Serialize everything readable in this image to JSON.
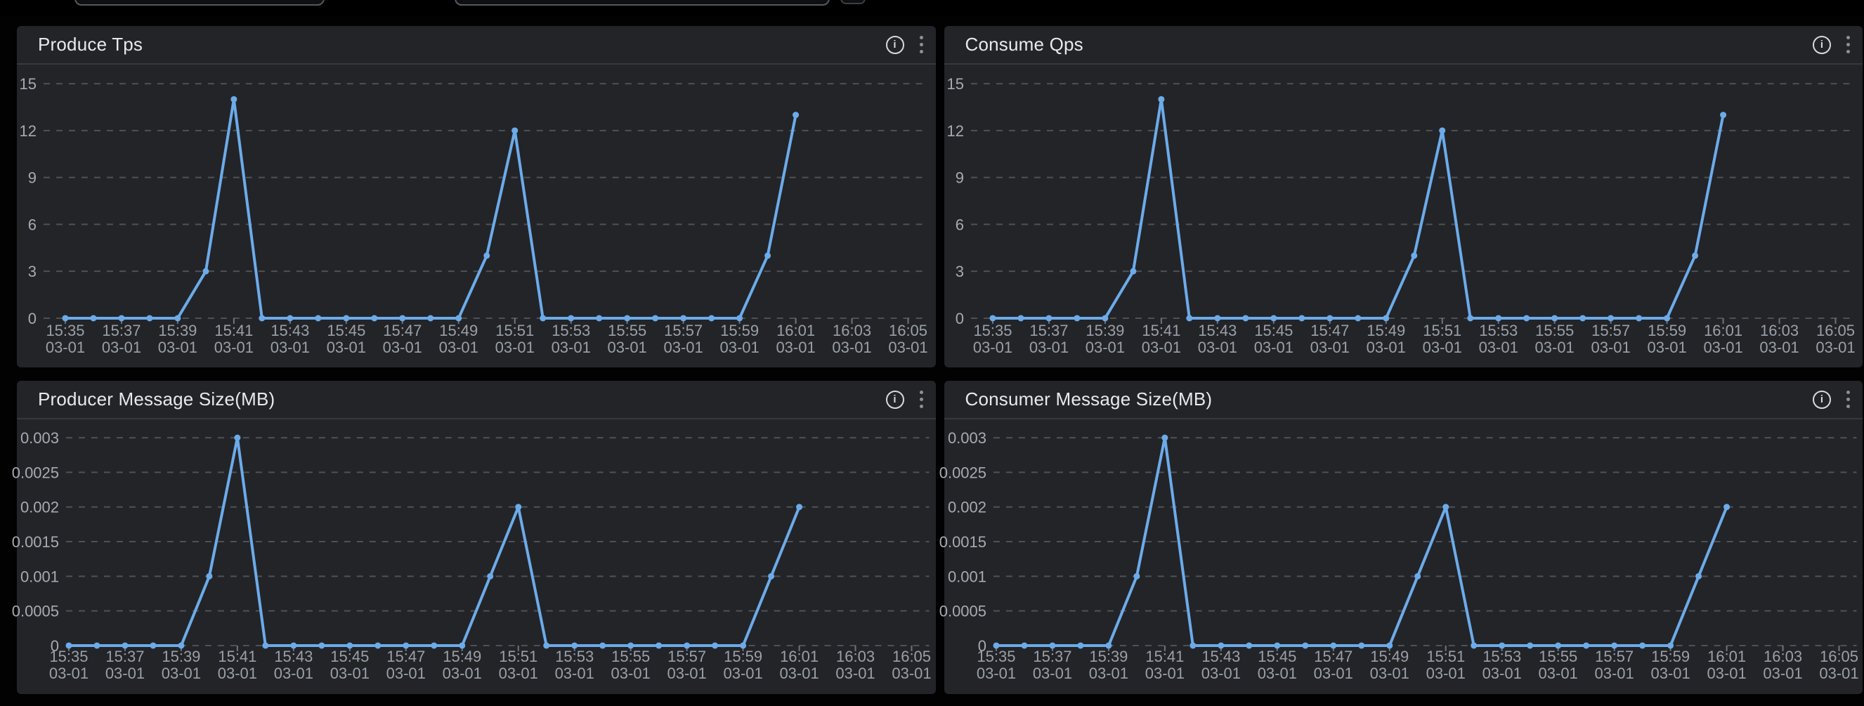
{
  "icons": [
    {
      "name": "info-icon",
      "glyph": "i"
    },
    {
      "name": "kebab-menu-icon",
      "glyph": "⋮"
    }
  ],
  "top_bar": {
    "inputs": [
      {
        "value": "",
        "placeholder": ""
      },
      {
        "value": "",
        "placeholder": ""
      }
    ],
    "button": {
      "label": ""
    }
  },
  "panels": [
    {
      "title": "Produce Tps",
      "chart_data": {
        "type": "line",
        "x": [
          "15:35",
          "15:36",
          "15:37",
          "15:38",
          "15:39",
          "15:40",
          "15:41",
          "15:42",
          "15:43",
          "15:44",
          "15:45",
          "15:46",
          "15:47",
          "15:48",
          "15:49",
          "15:50",
          "15:51",
          "15:52",
          "15:53",
          "15:54",
          "15:55",
          "15:56",
          "15:57",
          "15:58",
          "15:59",
          "16:00",
          "16:01"
        ],
        "values": [
          0,
          0,
          0,
          0,
          0,
          3,
          14,
          0,
          0,
          0,
          0,
          0,
          0,
          0,
          0,
          4,
          12,
          0,
          0,
          0,
          0,
          0,
          0,
          0,
          0,
          4,
          13
        ],
        "x_tick_times": [
          "15:35",
          "15:37",
          "15:39",
          "15:41",
          "15:43",
          "15:45",
          "15:47",
          "15:49",
          "15:51",
          "15:53",
          "15:55",
          "15:57",
          "15:59",
          "16:01",
          "16:03",
          "16:05"
        ],
        "x_tick_date": "03-01",
        "y_ticks": [
          15,
          12,
          9,
          6,
          3,
          0
        ],
        "ylim": [
          0,
          15
        ],
        "x_range": [
          "15:35",
          "16:05"
        ],
        "grid": "horizontal-dashed",
        "legend": "none",
        "line_color": "#6cabea",
        "marker": "circle"
      }
    },
    {
      "title": "Consume Qps",
      "chart_data": {
        "type": "line",
        "x": [
          "15:35",
          "15:36",
          "15:37",
          "15:38",
          "15:39",
          "15:40",
          "15:41",
          "15:42",
          "15:43",
          "15:44",
          "15:45",
          "15:46",
          "15:47",
          "15:48",
          "15:49",
          "15:50",
          "15:51",
          "15:52",
          "15:53",
          "15:54",
          "15:55",
          "15:56",
          "15:57",
          "15:58",
          "15:59",
          "16:00",
          "16:01"
        ],
        "values": [
          0,
          0,
          0,
          0,
          0,
          3,
          14,
          0,
          0,
          0,
          0,
          0,
          0,
          0,
          0,
          4,
          12,
          0,
          0,
          0,
          0,
          0,
          0,
          0,
          0,
          4,
          13
        ],
        "x_tick_times": [
          "15:35",
          "15:37",
          "15:39",
          "15:41",
          "15:43",
          "15:45",
          "15:47",
          "15:49",
          "15:51",
          "15:53",
          "15:55",
          "15:57",
          "15:59",
          "16:01",
          "16:03",
          "16:05"
        ],
        "x_tick_date": "03-01",
        "y_ticks": [
          15,
          12,
          9,
          6,
          3,
          0
        ],
        "ylim": [
          0,
          15
        ],
        "x_range": [
          "15:35",
          "16:05"
        ],
        "grid": "horizontal-dashed",
        "legend": "none",
        "line_color": "#6cabea",
        "marker": "circle"
      }
    },
    {
      "title": "Producer Message Size(MB)",
      "chart_data": {
        "type": "line",
        "x": [
          "15:35",
          "15:36",
          "15:37",
          "15:38",
          "15:39",
          "15:40",
          "15:41",
          "15:42",
          "15:43",
          "15:44",
          "15:45",
          "15:46",
          "15:47",
          "15:48",
          "15:49",
          "15:50",
          "15:51",
          "15:52",
          "15:53",
          "15:54",
          "15:55",
          "15:56",
          "15:57",
          "15:58",
          "15:59",
          "16:00",
          "16:01"
        ],
        "values": [
          0,
          0,
          0,
          0,
          0,
          0.001,
          0.003,
          0,
          0,
          0,
          0,
          0,
          0,
          0,
          0,
          0.001,
          0.002,
          0,
          0,
          0,
          0,
          0,
          0,
          0,
          0,
          0.001,
          0.002
        ],
        "x_tick_times": [
          "15:35",
          "15:37",
          "15:39",
          "15:41",
          "15:43",
          "15:45",
          "15:47",
          "15:49",
          "15:51",
          "15:53",
          "15:55",
          "15:57",
          "15:59",
          "16:01",
          "16:03",
          "16:05"
        ],
        "x_tick_date": "03-01",
        "y_ticks": [
          0.003,
          0.0025,
          0.002,
          0.0015,
          0.001,
          0.0005,
          0
        ],
        "ylim": [
          0,
          0.003
        ],
        "x_range": [
          "15:35",
          "16:05"
        ],
        "grid": "horizontal-dashed",
        "legend": "none",
        "line_color": "#6cabea",
        "marker": "circle"
      }
    },
    {
      "title": "Consumer Message Size(MB)",
      "chart_data": {
        "type": "line",
        "x": [
          "15:35",
          "15:36",
          "15:37",
          "15:38",
          "15:39",
          "15:40",
          "15:41",
          "15:42",
          "15:43",
          "15:44",
          "15:45",
          "15:46",
          "15:47",
          "15:48",
          "15:49",
          "15:50",
          "15:51",
          "15:52",
          "15:53",
          "15:54",
          "15:55",
          "15:56",
          "15:57",
          "15:58",
          "15:59",
          "16:00",
          "16:01"
        ],
        "values": [
          0,
          0,
          0,
          0,
          0,
          0.001,
          0.003,
          0,
          0,
          0,
          0,
          0,
          0,
          0,
          0,
          0.001,
          0.002,
          0,
          0,
          0,
          0,
          0,
          0,
          0,
          0,
          0.001,
          0.002
        ],
        "x_tick_times": [
          "15:35",
          "15:37",
          "15:39",
          "15:41",
          "15:43",
          "15:45",
          "15:47",
          "15:49",
          "15:51",
          "15:53",
          "15:55",
          "15:57",
          "15:59",
          "16:01",
          "16:03",
          "16:05"
        ],
        "x_tick_date": "03-01",
        "y_ticks": [
          0.003,
          0.0025,
          0.002,
          0.0015,
          0.001,
          0.0005,
          0
        ],
        "ylim": [
          0,
          0.003
        ],
        "x_range": [
          "15:35",
          "16:05"
        ],
        "grid": "horizontal-dashed",
        "legend": "none",
        "line_color": "#6cabea",
        "marker": "circle"
      }
    }
  ]
}
